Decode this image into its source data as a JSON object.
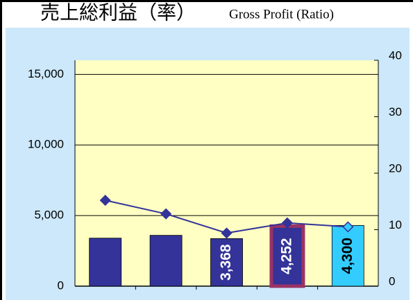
{
  "chart_data": {
    "type": "bar",
    "title": "売上総利益（率）",
    "subtitle": "Gross Profit (Ratio)",
    "categories": [
      null,
      null,
      null,
      null,
      null
    ],
    "series": [
      {
        "values": [
          3400,
          3600,
          3368,
          4252,
          4300
        ],
        "value_labels": [
          null,
          null,
          "3,368",
          "4,252",
          "4,300"
        ],
        "colors": [
          "#333399",
          "#333399",
          "#333399",
          "#333399",
          "#33ccff"
        ],
        "border_colors": [
          null,
          null,
          null,
          "#993366",
          null
        ],
        "label_colors": [
          null,
          null,
          "#ffffff",
          "#ffffff",
          "#000000"
        ]
      },
      {
        "type": "line",
        "axis": "y2",
        "values": [
          15.2,
          12.8,
          9.4,
          11.2,
          10.5
        ],
        "color": "#333399",
        "marker_colors": [
          "#333399",
          "#333399",
          "#333399",
          "#333399",
          "#33ccff"
        ]
      }
    ],
    "ylim": [
      0,
      16000
    ],
    "yticks": [
      0,
      {
        "value": 5000,
        "label": "5,000"
      },
      {
        "value": 10000,
        "label": "10,000"
      },
      {
        "value": 15000,
        "label": "15,000"
      }
    ],
    "y2lim": [
      0,
      40
    ],
    "y2ticks": [
      0,
      10,
      20,
      30,
      40
    ],
    "grid": true
  }
}
